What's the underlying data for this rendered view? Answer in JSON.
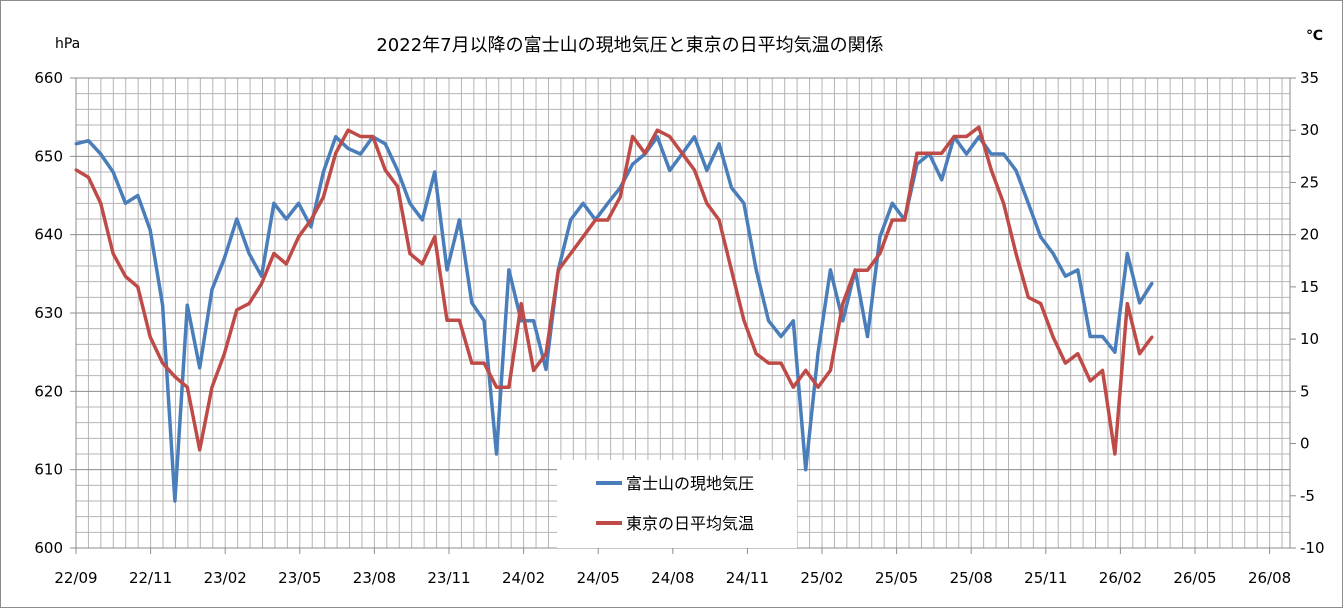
{
  "chart_data": {
    "type": "line",
    "title": "2022年7月以降の富士山の現地気圧と東京の日平均気温の関係",
    "y_left": {
      "unit": "hPa",
      "range": [
        600,
        660
      ],
      "ticks": [
        "660",
        "650",
        "640",
        "630",
        "620",
        "610",
        "600"
      ]
    },
    "y_right": {
      "unit": "℃",
      "range": [
        -10,
        35
      ],
      "ticks": [
        "35",
        "30",
        "25",
        "20",
        "15",
        "10",
        "5",
        "0",
        "-5",
        "-10"
      ]
    },
    "x_ticks": [
      "22/09",
      "22/11",
      "23/02",
      "23/05",
      "23/08",
      "23/11",
      "24/02",
      "24/05",
      "24/08",
      "24/11",
      "25/02",
      "25/05",
      "25/08",
      "25/11",
      "26/02",
      "26/05",
      "26/08"
    ],
    "grid": true,
    "legend_position": "bottom-center",
    "series": [
      {
        "name": "富士山の現地気圧",
        "axis": "left",
        "color": "#4a7ebb",
        "values": [
          651.6,
          652,
          650.3,
          648,
          644,
          645,
          640.6,
          631,
          606,
          631,
          623,
          633,
          637,
          642,
          637.6,
          634.7,
          644,
          642,
          644,
          641,
          648,
          652.5,
          651,
          650.3,
          652.5,
          651.6,
          648.2,
          644,
          641.9,
          648,
          635.5,
          641.9,
          631.3,
          629,
          612,
          635.5,
          629,
          629,
          622.8,
          635.5,
          641.9,
          644,
          641.9,
          644,
          646,
          649,
          650.3,
          652.5,
          648.2,
          650.3,
          652.5,
          648.2,
          651.6,
          646,
          644,
          635.5,
          629,
          627,
          629,
          610,
          625,
          635.5,
          629,
          635.5,
          627,
          639.7,
          644,
          641.9,
          649,
          650.3,
          647,
          652.5,
          650.3,
          652.5,
          650.3,
          650.3,
          648.2,
          644,
          639.7,
          637.6,
          634.7,
          635.5,
          627,
          627,
          625,
          637.6,
          631.3,
          633.8
        ]
      },
      {
        "name": "東京の日平均気温",
        "axis": "right",
        "color": "#be4b48",
        "values": [
          26.2,
          25.5,
          23,
          18.2,
          16,
          15,
          10.2,
          7.7,
          6.4,
          5.4,
          -0.6,
          5.4,
          8.6,
          12.8,
          13.4,
          15.3,
          18.2,
          17.2,
          19.8,
          21.4,
          23.6,
          27.8,
          30,
          29.4,
          29.4,
          26.2,
          24.6,
          18.2,
          17.2,
          19.8,
          11.8,
          11.8,
          7.7,
          7.7,
          5.4,
          5.4,
          13.4,
          7,
          8.6,
          16.6,
          18.2,
          19.8,
          21.4,
          21.4,
          23.6,
          29.4,
          27.8,
          30,
          29.4,
          27.8,
          26.2,
          23,
          21.4,
          16.6,
          11.8,
          8.6,
          7.7,
          7.7,
          5.4,
          7,
          5.4,
          7,
          13.4,
          16.6,
          16.6,
          18.2,
          21.4,
          21.4,
          27.8,
          27.8,
          27.8,
          29.4,
          29.4,
          30.3,
          26.2,
          23,
          18.2,
          14,
          13.4,
          10.2,
          7.7,
          8.6,
          6,
          7,
          -1,
          13.4,
          8.6,
          10.2
        ]
      }
    ]
  }
}
